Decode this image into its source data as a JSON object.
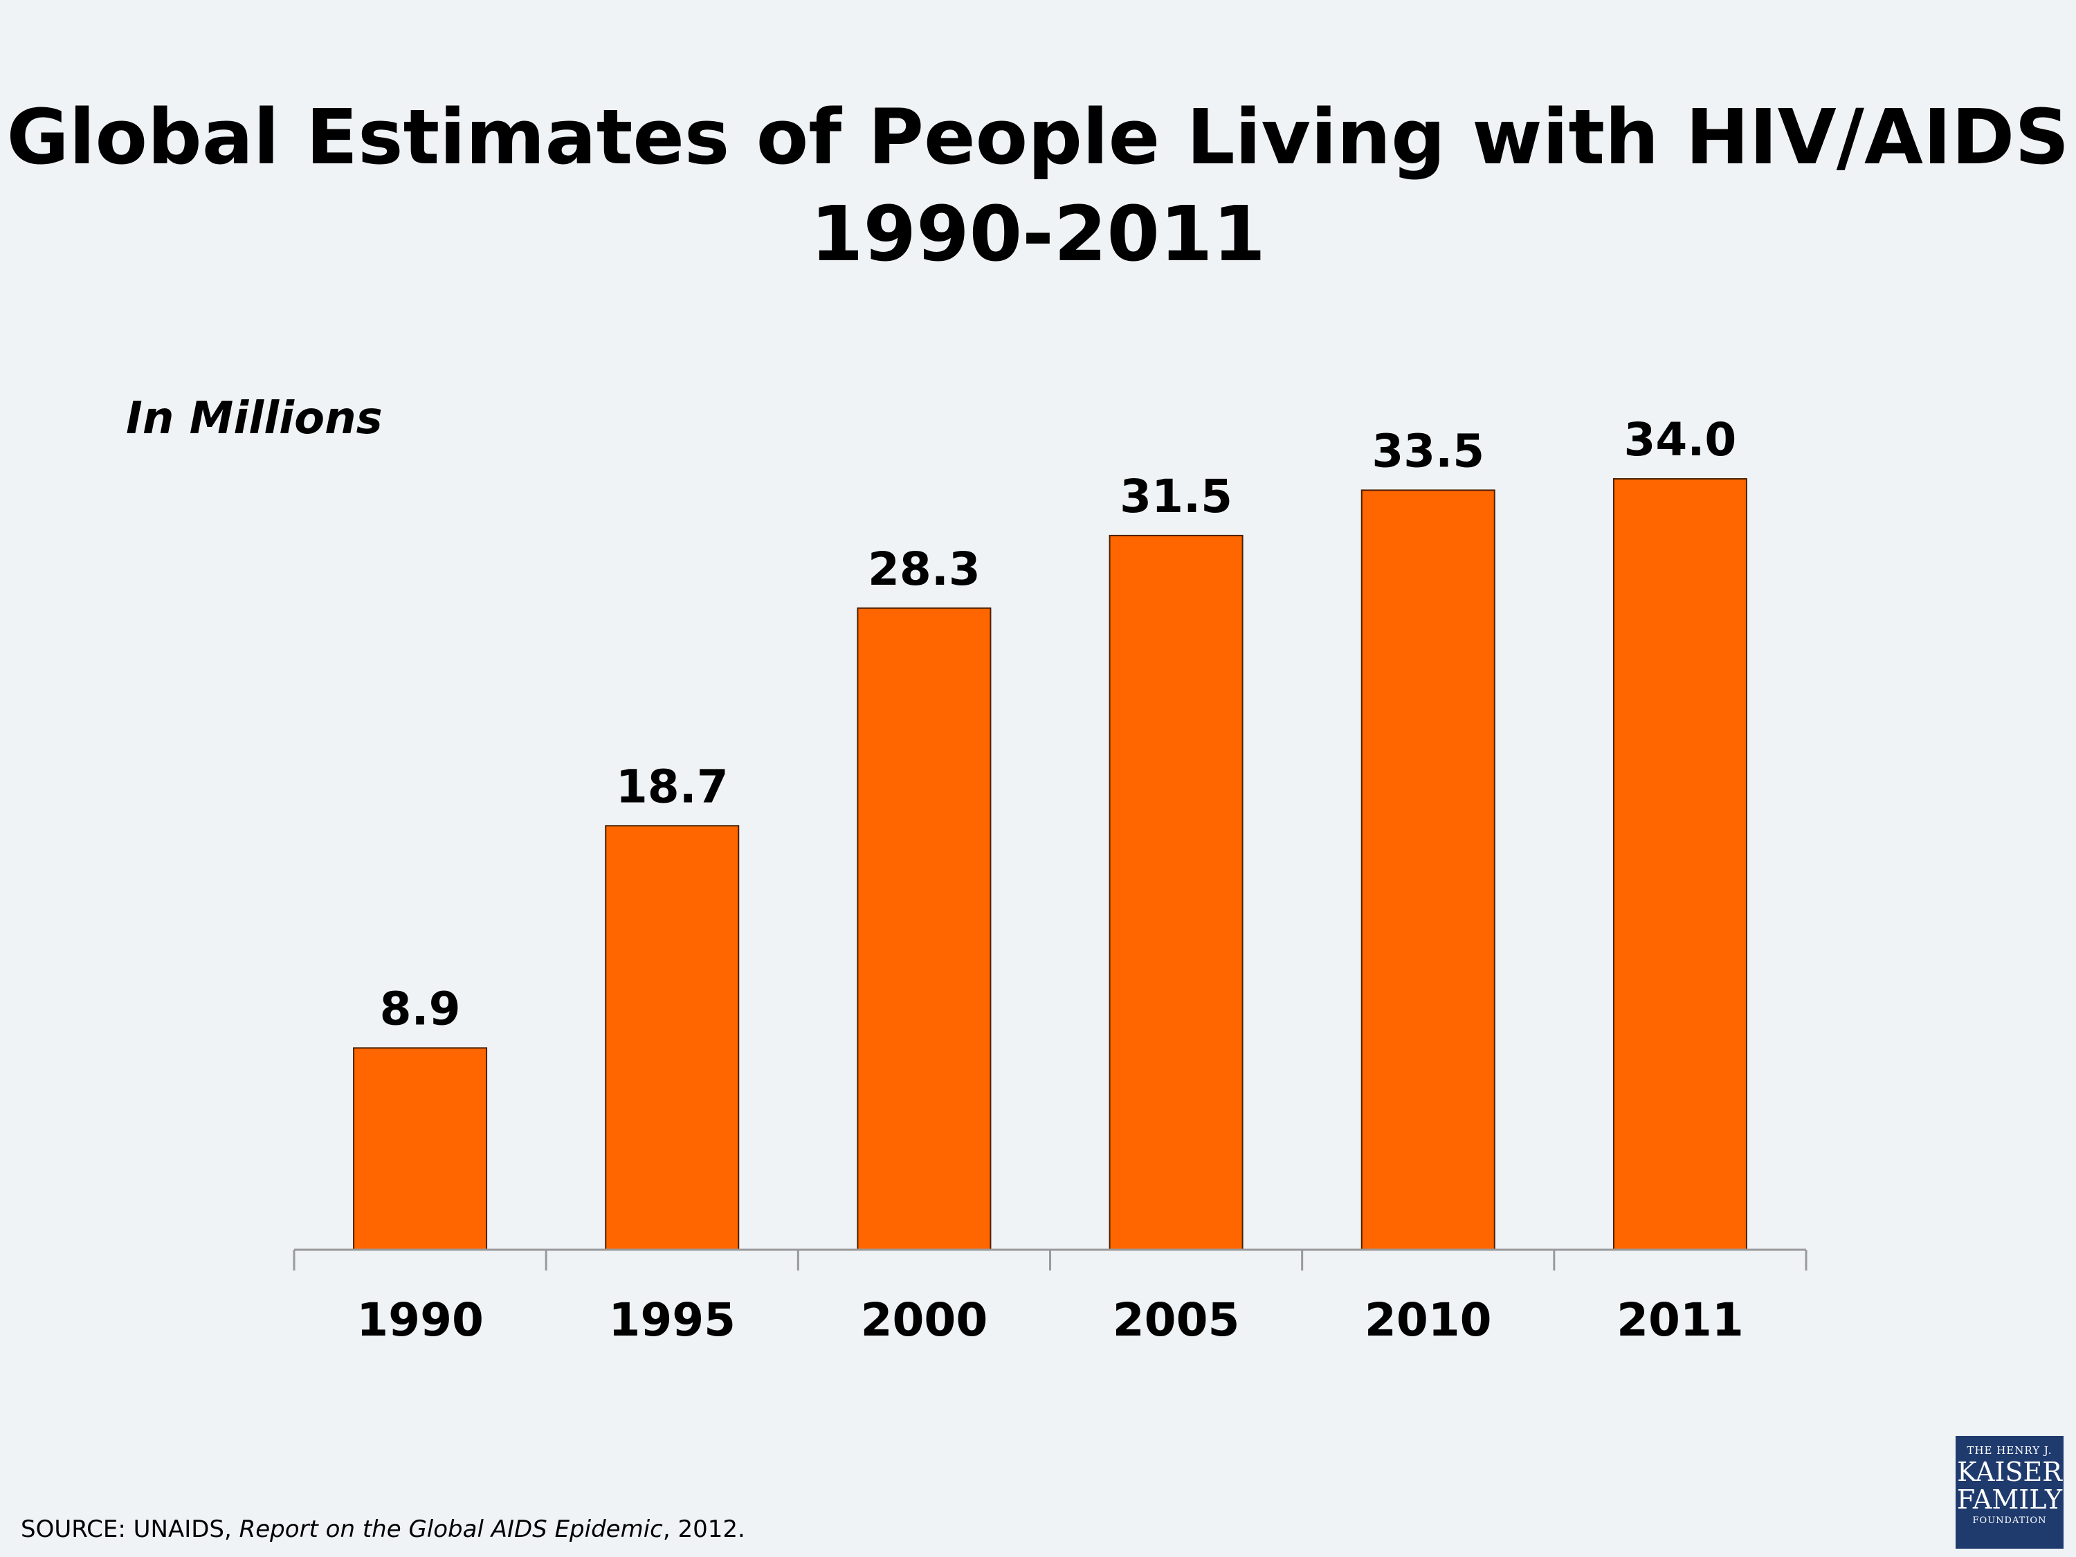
{
  "title": {
    "line1": "Global Estimates of People Living with HIV/AIDS",
    "line2": "1990-2011"
  },
  "units_label": "In Millions",
  "colors": {
    "bar": "#ff6600",
    "bar_border": "#4a2000",
    "background": "#eff3f6",
    "axis": "#9a9a9a"
  },
  "chart_data": {
    "type": "bar",
    "title": "Global Estimates of People Living with HIV/AIDS 1990-2011",
    "xlabel": "",
    "ylabel": "In Millions",
    "categories": [
      "1990",
      "1995",
      "2000",
      "2005",
      "2010",
      "2011"
    ],
    "values": [
      8.9,
      18.7,
      28.3,
      31.5,
      33.5,
      34.0
    ],
    "value_labels": [
      "8.9",
      "18.7",
      "28.3",
      "31.5",
      "33.5",
      "34.0"
    ],
    "ylim": [
      0,
      40
    ],
    "grid": false,
    "legend": "none"
  },
  "source": {
    "prefix": "SOURCE: UNAIDS, ",
    "report": "Report on the Global AIDS Epidemic",
    "suffix": ", 2012."
  },
  "logo": {
    "line1": "THE HENRY J.",
    "line2": "KAISER",
    "line3": "FAMILY",
    "line4": "FOUNDATION"
  }
}
